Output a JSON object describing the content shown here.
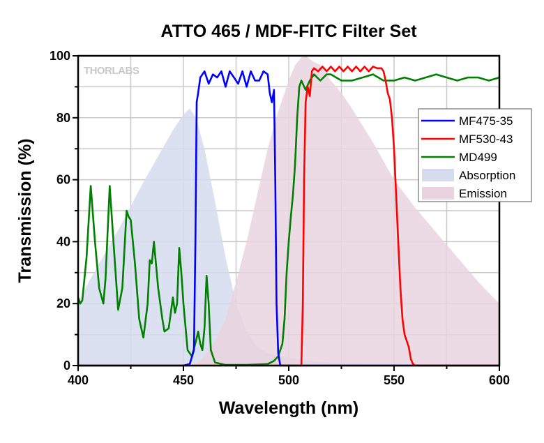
{
  "chart_data": {
    "type": "line",
    "title": "ATTO 465 / MDF-FITC Filter Set",
    "xlabel": "Wavelength (nm)",
    "ylabel": "Transmission (%)",
    "xlim": [
      400,
      600
    ],
    "ylim": [
      0,
      100
    ],
    "xticks": [
      400,
      450,
      500,
      550,
      600
    ],
    "yticks": [
      0,
      20,
      40,
      60,
      80,
      100
    ],
    "grid": true,
    "legend_position": "right",
    "watermark": "THORLABS",
    "series": [
      {
        "name": "Absorption",
        "kind": "area",
        "color": "#d6dcee",
        "x": [
          400,
          405,
          410,
          420,
          430,
          440,
          445,
          450,
          453,
          456,
          460,
          465,
          470,
          475,
          480,
          485,
          490,
          500,
          510,
          520,
          540,
          560,
          600
        ],
        "y": [
          20,
          27,
          33,
          45,
          58,
          70,
          76,
          81,
          83,
          80,
          70,
          53,
          35,
          20,
          11,
          6,
          4,
          2.5,
          1.5,
          1,
          0.5,
          0.2,
          0
        ]
      },
      {
        "name": "Emission",
        "kind": "area",
        "color": "#e9d3df",
        "x": [
          455,
          460,
          465,
          470,
          475,
          480,
          485,
          490,
          495,
          500,
          503,
          506,
          508,
          512,
          515,
          520,
          525,
          530,
          540,
          550,
          560,
          570,
          580,
          590,
          600
        ],
        "y": [
          0,
          3,
          8,
          15,
          27,
          40,
          55,
          70,
          82,
          92,
          97,
          99.5,
          100,
          98,
          97,
          92,
          88,
          83,
          72,
          60,
          51,
          43,
          35,
          27,
          20
        ]
      },
      {
        "name": "MF475-35",
        "kind": "line",
        "color": "#0000ff",
        "x": [
          400,
          450,
          453,
          455,
          455.7,
          456.3,
          457,
          458,
          460,
          462,
          464,
          466,
          468,
          470,
          472,
          474,
          476,
          478,
          480,
          482,
          484,
          486,
          488,
          490,
          491,
          492,
          493,
          493.6,
          494.2,
          495,
          496,
          600
        ],
        "y": [
          0,
          0,
          0.5,
          5,
          40,
          85,
          88,
          93,
          95,
          91,
          94,
          93,
          95,
          90,
          95,
          93,
          91,
          95,
          90,
          95,
          92,
          92,
          95,
          94,
          88,
          85,
          89,
          60,
          20,
          4,
          0,
          0
        ]
      },
      {
        "name": "MF530-43",
        "kind": "line",
        "color": "#ff0000",
        "x": [
          400,
          506,
          506.7,
          507.3,
          508,
          509,
          510,
          511,
          512,
          514,
          516,
          518,
          520,
          522,
          524,
          526,
          528,
          530,
          532,
          534,
          536,
          538,
          540,
          542,
          544,
          545,
          546,
          547,
          548,
          549,
          550,
          551,
          552,
          553,
          554,
          555,
          556,
          557,
          558,
          559,
          560,
          600
        ],
        "y": [
          0,
          0,
          20,
          60,
          85,
          90,
          87,
          95,
          96,
          95,
          96.5,
          95,
          96.5,
          95,
          96.5,
          95,
          96.5,
          95,
          96.5,
          95,
          96.5,
          95,
          96.5,
          96,
          96,
          95,
          92,
          88,
          86,
          80,
          70,
          55,
          40,
          25,
          15,
          10,
          8,
          6,
          2,
          0.5,
          0,
          0
        ]
      },
      {
        "name": "MD499",
        "kind": "line",
        "color": "#008000",
        "x": [
          400,
          401,
          402,
          404,
          406,
          408,
          410,
          412,
          413,
          415,
          417,
          419,
          421,
          423,
          424,
          425,
          427,
          429,
          431,
          433,
          434,
          435,
          436,
          438,
          440,
          441,
          443,
          445,
          446,
          447,
          448,
          449,
          450,
          452,
          454,
          456,
          457,
          458,
          459,
          460,
          461,
          462,
          463,
          465,
          470,
          480,
          490,
          493,
          495,
          497,
          498,
          499,
          500,
          501,
          502,
          503,
          504,
          505,
          506,
          508,
          510,
          512,
          515,
          518,
          520,
          525,
          530,
          535,
          540,
          545,
          550,
          555,
          560,
          565,
          570,
          575,
          580,
          585,
          590,
          595,
          600
        ],
        "y": [
          22,
          20,
          21,
          35,
          58,
          40,
          25,
          20,
          28,
          58,
          38,
          18,
          25,
          50,
          48,
          47,
          33,
          15,
          9,
          20,
          34,
          33,
          40,
          25,
          15,
          11,
          12,
          22,
          17,
          20,
          38,
          30,
          20,
          5,
          3,
          8,
          11,
          7,
          5,
          12,
          29,
          20,
          5,
          1,
          0.2,
          0.2,
          0.5,
          1.5,
          3,
          7,
          15,
          30,
          40,
          48,
          55,
          65,
          80,
          90,
          92,
          89,
          92,
          94,
          92,
          94,
          94,
          92,
          92,
          93,
          94,
          92,
          92,
          93,
          92,
          93,
          94,
          93,
          92,
          93,
          93,
          92,
          93
        ]
      }
    ]
  }
}
